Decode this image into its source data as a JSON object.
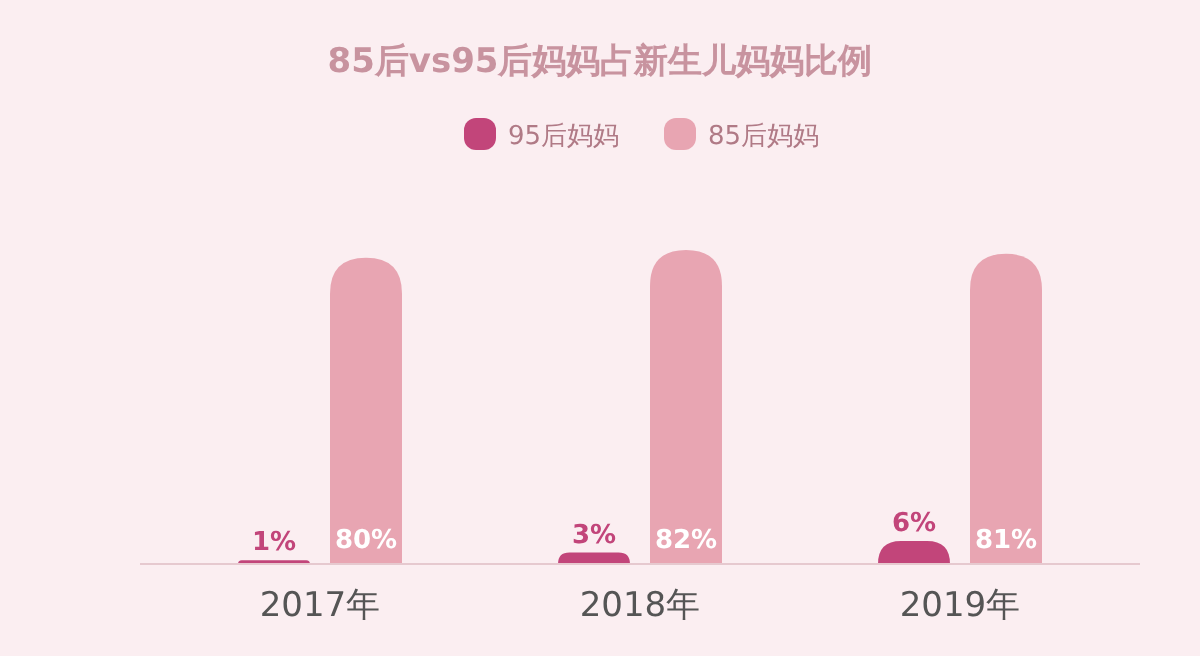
{
  "chart_data": {
    "type": "bar",
    "title": "85后vs95后妈妈占新生儿妈妈比例",
    "categories": [
      "2017年",
      "2018年",
      "2019年"
    ],
    "series": [
      {
        "name": "95后妈妈",
        "color": "#c2457a",
        "values": [
          1,
          3,
          6
        ],
        "value_labels": [
          "1%",
          "3%",
          "6%"
        ]
      },
      {
        "name": "85后妈妈",
        "color": "#e8a5b2",
        "values": [
          80,
          82,
          81
        ],
        "value_labels": [
          "80%",
          "82%",
          "81%"
        ]
      }
    ],
    "legend": "top"
  }
}
